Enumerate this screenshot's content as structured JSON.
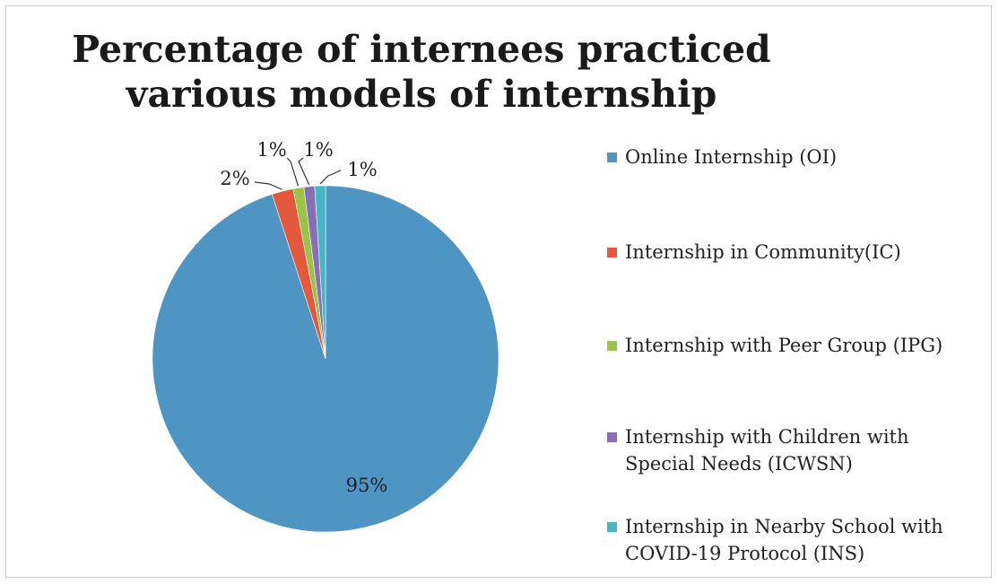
{
  "chart_data": {
    "type": "pie",
    "title_lines": [
      "Percentage of internees practiced",
      "various models of internship"
    ],
    "slices": [
      {
        "name": "Online Internship (OI)",
        "value": 95,
        "label": "95%",
        "color": "#4f95c4"
      },
      {
        "name": "Internship in Community(IC)",
        "value": 2,
        "label": "2%",
        "color": "#e4583e"
      },
      {
        "name": "Internship with Peer Group (IPG)",
        "value": 1,
        "label": "1%",
        "color": "#9bc447"
      },
      {
        "name": "Internship with Children with Special Needs (ICWSN)",
        "value": 1,
        "label": "1%",
        "color": "#8a6eb5"
      },
      {
        "name": "Internship in Nearby School with COVID-19 Protocol (INS)",
        "value": 1,
        "label": "1%",
        "color": "#44b6c4"
      }
    ],
    "legend_position": "right"
  }
}
